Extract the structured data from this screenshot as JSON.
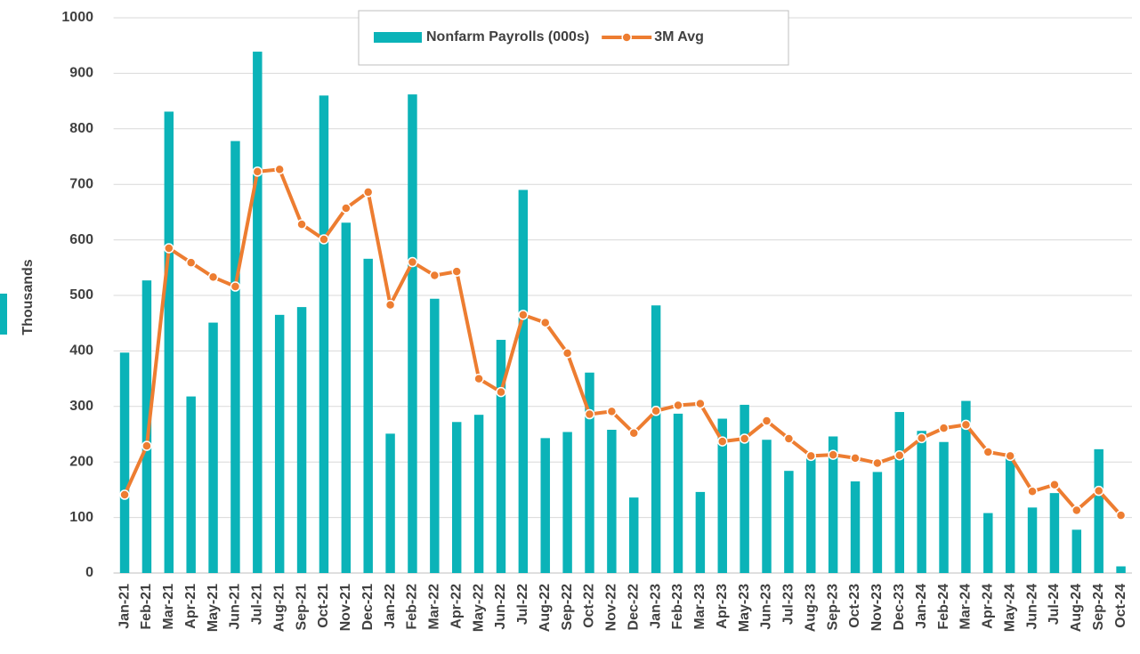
{
  "chart_data": {
    "type": "bar",
    "y_label": "Thousands",
    "categories": [
      "Jan-21",
      "Feb-21",
      "Mar-21",
      "Apr-21",
      "May-21",
      "Jun-21",
      "Jul-21",
      "Aug-21",
      "Sep-21",
      "Oct-21",
      "Nov-21",
      "Dec-21",
      "Jan-22",
      "Feb-22",
      "Mar-22",
      "Apr-22",
      "May-22",
      "Jun-22",
      "Jul-22",
      "Aug-22",
      "Sep-22",
      "Oct-22",
      "Nov-22",
      "Dec-22",
      "Jan-23",
      "Feb-23",
      "Mar-23",
      "Apr-23",
      "May-23",
      "Jun-23",
      "Jul-23",
      "Aug-23",
      "Sep-23",
      "Oct-23",
      "Nov-23",
      "Dec-23",
      "Jan-24",
      "Feb-24",
      "Mar-24",
      "Apr-24",
      "May-24",
      "Jun-24",
      "Jul-24",
      "Aug-24",
      "Sep-24",
      "Oct-24"
    ],
    "series": [
      {
        "name": "Nonfarm Payrolls (000s)",
        "type": "bar",
        "color": "#0bb3b8",
        "values": [
          397,
          527,
          831,
          318,
          451,
          778,
          939,
          465,
          479,
          860,
          631,
          566,
          251,
          862,
          494,
          272,
          285,
          420,
          690,
          243,
          254,
          361,
          258,
          136,
          482,
          287,
          146,
          278,
          303,
          240,
          184,
          209,
          246,
          165,
          182,
          290,
          256,
          236,
          310,
          108,
          216,
          118,
          144,
          78,
          223,
          12
        ]
      },
      {
        "name": "3M Avg",
        "type": "line",
        "color": "#ed7d31",
        "values": [
          141,
          229,
          585,
          559,
          533,
          516,
          723,
          727,
          628,
          601,
          657,
          686,
          483,
          560,
          536,
          543,
          350,
          326,
          465,
          451,
          396,
          286,
          291,
          252,
          292,
          302,
          305,
          237,
          242,
          274,
          242,
          211,
          213,
          207,
          198,
          212,
          243,
          261,
          267,
          218,
          211,
          147,
          159,
          113,
          148,
          104
        ]
      }
    ],
    "ylim": [
      0,
      1000
    ],
    "yticks": [
      0,
      100,
      200,
      300,
      400,
      500,
      600,
      700,
      800,
      900,
      1000
    ],
    "grid": true,
    "legend": "top"
  }
}
